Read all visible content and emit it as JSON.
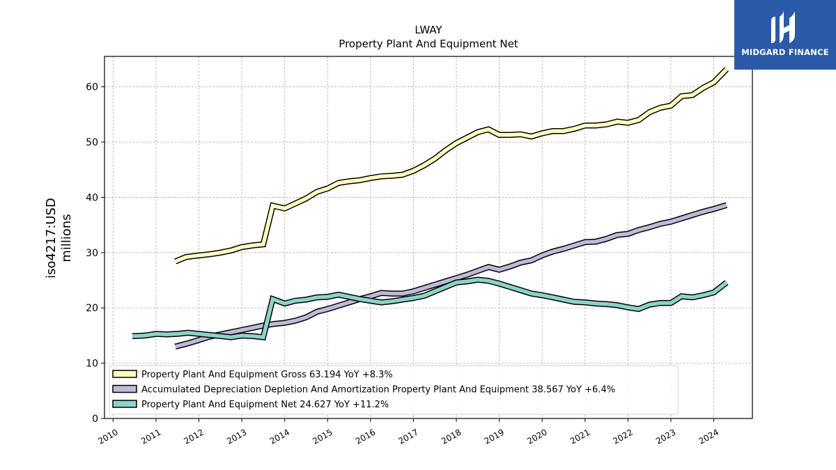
{
  "chart_data": {
    "type": "line",
    "title": "LWAY",
    "subtitle": "Property Plant And Equipment Net",
    "ylabel_line1": "iso4217:USD",
    "ylabel_line2": "millions",
    "ylim": [
      0,
      65.5
    ],
    "yticks": [
      0,
      10,
      20,
      30,
      40,
      50,
      60
    ],
    "xlim": [
      2009.8,
      2024.9
    ],
    "xticks": [
      "2010",
      "2011",
      "2012",
      "2013",
      "2014",
      "2015",
      "2016",
      "2017",
      "2018",
      "2019",
      "2020",
      "2021",
      "2022",
      "2023",
      "2024"
    ],
    "grid": true,
    "legend_position": "lower-left",
    "series": [
      {
        "name": "Property Plant And Equipment Gross",
        "legend_label": "Property Plant And Equipment Gross  63.194 YoY +8.3%",
        "color": "#ffffbf",
        "points": [
          [
            2011.45,
            28.4
          ],
          [
            2011.7,
            29.2
          ],
          [
            2012.0,
            29.5
          ],
          [
            2012.25,
            29.7
          ],
          [
            2012.5,
            30.0
          ],
          [
            2012.75,
            30.4
          ],
          [
            2013.0,
            31.0
          ],
          [
            2013.25,
            31.3
          ],
          [
            2013.5,
            31.5
          ],
          [
            2013.72,
            38.5
          ],
          [
            2014.0,
            38.0
          ],
          [
            2014.25,
            38.9
          ],
          [
            2014.5,
            39.8
          ],
          [
            2014.75,
            41.0
          ],
          [
            2015.0,
            41.6
          ],
          [
            2015.25,
            42.6
          ],
          [
            2015.5,
            42.9
          ],
          [
            2015.75,
            43.1
          ],
          [
            2016.0,
            43.5
          ],
          [
            2016.25,
            43.8
          ],
          [
            2016.5,
            43.9
          ],
          [
            2016.75,
            44.1
          ],
          [
            2017.0,
            44.8
          ],
          [
            2017.25,
            45.8
          ],
          [
            2017.5,
            47.0
          ],
          [
            2017.75,
            48.5
          ],
          [
            2018.0,
            49.8
          ],
          [
            2018.25,
            50.8
          ],
          [
            2018.5,
            51.8
          ],
          [
            2018.75,
            52.3
          ],
          [
            2019.0,
            51.3
          ],
          [
            2019.25,
            51.3
          ],
          [
            2019.5,
            51.4
          ],
          [
            2019.75,
            51.0
          ],
          [
            2020.0,
            51.6
          ],
          [
            2020.25,
            52.0
          ],
          [
            2020.5,
            52.0
          ],
          [
            2020.75,
            52.4
          ],
          [
            2021.0,
            53.0
          ],
          [
            2021.25,
            53.0
          ],
          [
            2021.5,
            53.2
          ],
          [
            2021.75,
            53.7
          ],
          [
            2022.0,
            53.5
          ],
          [
            2022.25,
            54.0
          ],
          [
            2022.5,
            55.4
          ],
          [
            2022.75,
            56.2
          ],
          [
            2023.0,
            56.6
          ],
          [
            2023.25,
            58.3
          ],
          [
            2023.5,
            58.5
          ],
          [
            2023.75,
            59.8
          ],
          [
            2024.0,
            60.8
          ],
          [
            2024.3,
            63.2
          ]
        ]
      },
      {
        "name": "Accumulated Depreciation Depletion And Amortization Property Plant And Equipment",
        "legend_label": "Accumulated Depreciation Depletion And Amortization Property Plant And Equipment  38.567 YoY +6.4%",
        "color": "#bebada",
        "points": [
          [
            2011.45,
            13.0
          ],
          [
            2011.75,
            13.6
          ],
          [
            2012.0,
            14.2
          ],
          [
            2012.25,
            14.8
          ],
          [
            2012.5,
            15.2
          ],
          [
            2012.75,
            15.6
          ],
          [
            2013.0,
            16.0
          ],
          [
            2013.25,
            16.4
          ],
          [
            2013.5,
            16.8
          ],
          [
            2013.75,
            17.1
          ],
          [
            2014.0,
            17.3
          ],
          [
            2014.25,
            17.7
          ],
          [
            2014.5,
            18.3
          ],
          [
            2014.75,
            19.3
          ],
          [
            2015.0,
            19.8
          ],
          [
            2015.25,
            20.4
          ],
          [
            2015.5,
            21.0
          ],
          [
            2015.75,
            21.6
          ],
          [
            2016.0,
            22.1
          ],
          [
            2016.25,
            22.7
          ],
          [
            2016.5,
            22.6
          ],
          [
            2016.75,
            22.6
          ],
          [
            2017.0,
            23.0
          ],
          [
            2017.25,
            23.6
          ],
          [
            2017.5,
            24.2
          ],
          [
            2017.75,
            24.8
          ],
          [
            2018.0,
            25.4
          ],
          [
            2018.25,
            26.0
          ],
          [
            2018.5,
            26.7
          ],
          [
            2018.75,
            27.4
          ],
          [
            2019.0,
            26.9
          ],
          [
            2019.25,
            27.5
          ],
          [
            2019.5,
            28.2
          ],
          [
            2019.75,
            28.6
          ],
          [
            2020.0,
            29.5
          ],
          [
            2020.25,
            30.2
          ],
          [
            2020.5,
            30.7
          ],
          [
            2020.75,
            31.3
          ],
          [
            2021.0,
            31.9
          ],
          [
            2021.25,
            32.0
          ],
          [
            2021.5,
            32.5
          ],
          [
            2021.75,
            33.2
          ],
          [
            2022.0,
            33.4
          ],
          [
            2022.25,
            34.1
          ],
          [
            2022.5,
            34.6
          ],
          [
            2022.75,
            35.2
          ],
          [
            2023.0,
            35.6
          ],
          [
            2023.25,
            36.2
          ],
          [
            2023.5,
            36.8
          ],
          [
            2023.75,
            37.4
          ],
          [
            2024.0,
            37.9
          ],
          [
            2024.3,
            38.6
          ]
        ]
      },
      {
        "name": "Property Plant And Equipment Net",
        "legend_label": "Property Plant And Equipment Net  24.627 YoY +11.2%",
        "color": "#8dd3c7",
        "points": [
          [
            2010.45,
            14.9
          ],
          [
            2010.75,
            15.0
          ],
          [
            2011.0,
            15.3
          ],
          [
            2011.25,
            15.2
          ],
          [
            2011.5,
            15.3
          ],
          [
            2011.75,
            15.5
          ],
          [
            2012.0,
            15.3
          ],
          [
            2012.25,
            15.1
          ],
          [
            2012.5,
            14.9
          ],
          [
            2012.75,
            14.7
          ],
          [
            2013.0,
            15.0
          ],
          [
            2013.25,
            14.9
          ],
          [
            2013.5,
            14.7
          ],
          [
            2013.72,
            21.6
          ],
          [
            2014.0,
            20.8
          ],
          [
            2014.25,
            21.3
          ],
          [
            2014.5,
            21.5
          ],
          [
            2014.75,
            21.9
          ],
          [
            2015.0,
            22.0
          ],
          [
            2015.25,
            22.4
          ],
          [
            2015.5,
            22.0
          ],
          [
            2015.75,
            21.6
          ],
          [
            2016.0,
            21.3
          ],
          [
            2016.25,
            21.0
          ],
          [
            2016.5,
            21.2
          ],
          [
            2016.75,
            21.5
          ],
          [
            2017.0,
            21.8
          ],
          [
            2017.25,
            22.2
          ],
          [
            2017.5,
            23.0
          ],
          [
            2017.75,
            23.8
          ],
          [
            2018.0,
            24.6
          ],
          [
            2018.25,
            24.8
          ],
          [
            2018.5,
            25.1
          ],
          [
            2018.75,
            24.9
          ],
          [
            2019.0,
            24.4
          ],
          [
            2019.25,
            23.8
          ],
          [
            2019.5,
            23.2
          ],
          [
            2019.75,
            22.6
          ],
          [
            2020.0,
            22.3
          ],
          [
            2020.25,
            21.9
          ],
          [
            2020.5,
            21.5
          ],
          [
            2020.75,
            21.1
          ],
          [
            2021.0,
            21.0
          ],
          [
            2021.25,
            20.8
          ],
          [
            2021.5,
            20.7
          ],
          [
            2021.75,
            20.5
          ],
          [
            2022.0,
            20.1
          ],
          [
            2022.25,
            19.8
          ],
          [
            2022.5,
            20.6
          ],
          [
            2022.75,
            20.9
          ],
          [
            2023.0,
            20.9
          ],
          [
            2023.25,
            22.1
          ],
          [
            2023.5,
            21.9
          ],
          [
            2023.75,
            22.3
          ],
          [
            2024.0,
            22.8
          ],
          [
            2024.3,
            24.6
          ]
        ]
      }
    ]
  },
  "logo": {
    "text": "MIDGARD FINANCE",
    "background": "#2b5aa8",
    "icon": "midgard-logo-icon"
  }
}
